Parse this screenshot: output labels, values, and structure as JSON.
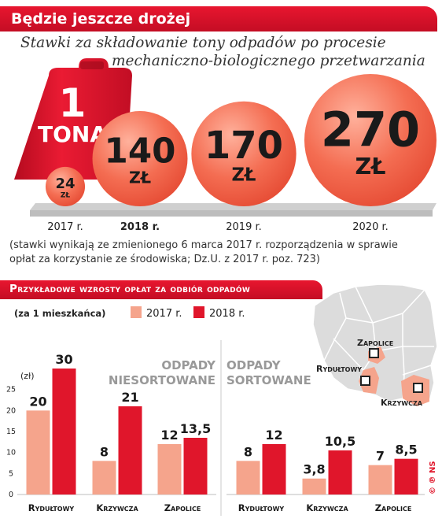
{
  "header": {
    "title": "Będzie jeszcze drożej",
    "subtitle_line1": "Stawki za składowanie tony odpadów po procesie",
    "subtitle_line2": "mechaniczno-biologicznego przetwarzania"
  },
  "weight": {
    "number": "1",
    "label": "TONA"
  },
  "note": {
    "line1": "(stawki wynikają ze zmienionego 6 marca 2017 r. rozporządzenia w sprawie",
    "line2": "opłat za korzystanie ze środowiska; Dz.U. z 2017 r. poz. 723)"
  },
  "section2": {
    "title": "Przykładowe wzrosty opłat za odbiór odpadów",
    "per_resident": "(za 1 mieszkańca)",
    "legend": [
      "2017 r.",
      "2018 r."
    ],
    "unit": "(zł)",
    "panel_left": [
      "ODPADY",
      "NIESORTOWANE"
    ],
    "panel_right": [
      "ODPADY",
      "SORTOWANE"
    ]
  },
  "map": {
    "cities": [
      "Zapolice",
      "Rydułtowy",
      "Krzywcza"
    ]
  },
  "credit": "© ℗ NS",
  "colors": {
    "red": "#e0162b",
    "salmon": "#f5a48c",
    "bubble": "#f26a50",
    "platform": "#d2d2d2",
    "map": "#dedede"
  },
  "chart_data": [
    {
      "type": "bubble",
      "categories": [
        "2017 r.",
        "2018 r.",
        "2019 r.",
        "2020 r."
      ],
      "values": [
        24,
        140,
        170,
        270
      ],
      "value_labels": [
        "24",
        "140",
        "170",
        "270"
      ],
      "currency": "ZŁ"
    },
    {
      "type": "bar",
      "categories": [
        "Rydułtowy",
        "Krzywcza",
        "Zapolice"
      ],
      "series": [
        {
          "name": "2017 r.",
          "values": [
            20,
            8,
            12
          ],
          "labels": [
            "20",
            "8",
            "12"
          ]
        },
        {
          "name": "2018 r.",
          "values": [
            30,
            21,
            13.5
          ],
          "labels": [
            "30",
            "21",
            "13,5"
          ]
        }
      ],
      "ylim": [
        0,
        30
      ],
      "yticks": [
        0,
        5,
        10,
        15,
        20,
        25
      ]
    },
    {
      "type": "bar",
      "categories": [
        "Rydułtowy",
        "Krzywcza",
        "Zapolice"
      ],
      "series": [
        {
          "name": "2017 r.",
          "values": [
            8,
            3.8,
            7
          ],
          "labels": [
            "8",
            "3,8",
            "7"
          ]
        },
        {
          "name": "2018 r.",
          "values": [
            12,
            10.5,
            8.5
          ],
          "labels": [
            "12",
            "10,5",
            "8,5"
          ]
        }
      ],
      "ylim": [
        0,
        30
      ]
    }
  ]
}
